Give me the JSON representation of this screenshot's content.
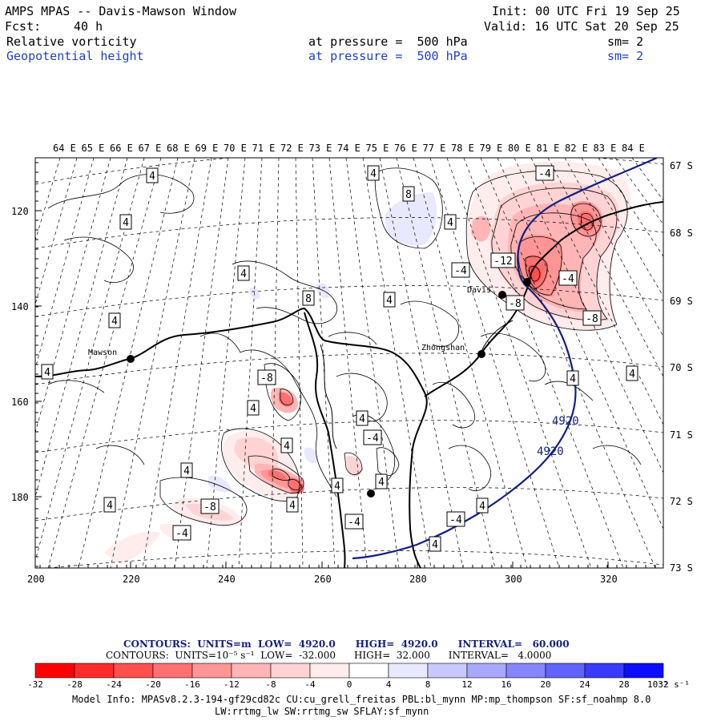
{
  "header": {
    "title": "AMPS MPAS -- Davis-Mawson Window",
    "init": "Init: 00 UTC Fri 19 Sep 25",
    "fcst_label": "Fcst:",
    "fcst_value": "40 h",
    "valid": "Valid: 16 UTC Sat 20 Sep 25",
    "field1": "Relative vorticity",
    "field1_level": "at pressure =  500 hPa",
    "field1_sm": "sm= 2",
    "field2": "Geopotential height",
    "field2_level": "at pressure =  500 hPa",
    "field2_sm": "sm= 2"
  },
  "map": {
    "lon_labels": [
      "64 E",
      "65 E",
      "66 E",
      "67 E",
      "68 E",
      "69 E",
      "70 E",
      "71 E",
      "72 E",
      "73 E",
      "74 E",
      "75 E",
      "76 E",
      "77 E",
      "78 E",
      "79 E",
      "80 E",
      "81 E",
      "82 E",
      "83 E",
      "84 E"
    ],
    "lat_labels": [
      "67 S",
      "68 S",
      "69 S",
      "70 S",
      "71 S",
      "72 S",
      "73 S"
    ],
    "y_ticks": [
      "120",
      "140",
      "160",
      "180"
    ],
    "x_ticks": [
      "200",
      "220",
      "240",
      "260",
      "280",
      "300",
      "320"
    ],
    "stations": [
      {
        "name": "Mawson"
      },
      {
        "name": "Davis"
      },
      {
        "name": "Zhongshan"
      }
    ],
    "contour_boxes": [
      "4",
      "4",
      "8",
      "4",
      "4",
      "-4",
      "-12",
      "-4",
      "4",
      "-4",
      "-8",
      "8",
      "4",
      "-8",
      "4",
      "-8",
      "4",
      "4",
      "4",
      "4",
      "4",
      "-4",
      "4",
      "4",
      "-4",
      "4",
      "-4",
      "-8",
      "4",
      "4",
      "4",
      "4",
      "-4",
      "4"
    ],
    "height_labels": [
      "4920",
      "4920"
    ]
  },
  "legend": {
    "contours1": "CONTOURS:  UNITS=m  LOW=  4920.0      HIGH=  4920.0      INTERVAL=   60.000",
    "contours2": "CONTOURS:  UNITS=10⁻⁵ s⁻¹  LOW=  -32.000      HIGH=  32.000      INTERVAL=   4.0000",
    "ticks": [
      "-32",
      "-28",
      "-24",
      "-20",
      "-16",
      "-12",
      "-8",
      "-4",
      "0",
      "4",
      "8",
      "12",
      "16",
      "20",
      "24",
      "28",
      "32"
    ],
    "units": "10⁻⁵ s⁻¹",
    "colors": [
      "#ff0000",
      "#ff2a2a",
      "#ff4f4f",
      "#ff7171",
      "#ff9595",
      "#ffb5b5",
      "#ffd3d3",
      "#ffecec",
      "#ffffff",
      "#ffffff",
      "#e8e8ff",
      "#c8c8ff",
      "#a8a8ff",
      "#8585ff",
      "#6262ff",
      "#3a3aff",
      "#0c0cff"
    ]
  },
  "model_info": {
    "line1": "Model Info: MPASv8.2.3-194-gf29cd82c CU:cu_grell_freitas PBL:bl_mynn MP:mp_thompson SF:sf_noahmp 8.0",
    "line2": "LW:rrtmg_lw SW:rrtmg_sw SFLAY:sf_mynn"
  }
}
